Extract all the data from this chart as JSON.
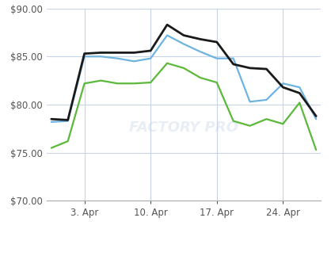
{
  "x_labels": [
    "3. Apr",
    "10. Apr",
    "17. Apr",
    "24. Apr"
  ],
  "brent_crude": [
    78.2,
    78.3,
    85.0,
    85.0,
    84.8,
    84.5,
    84.8,
    87.2,
    86.3,
    85.5,
    84.8,
    84.8,
    80.3,
    80.5,
    82.2,
    81.8,
    78.5
  ],
  "opec_basket": [
    78.5,
    78.4,
    85.3,
    85.4,
    85.4,
    85.4,
    85.6,
    88.3,
    87.2,
    86.8,
    86.5,
    84.2,
    83.8,
    83.7,
    81.8,
    81.2,
    78.8
  ],
  "iran_heavy": [
    75.5,
    76.2,
    82.2,
    82.5,
    82.2,
    82.2,
    82.3,
    84.3,
    83.8,
    82.8,
    82.3,
    78.3,
    77.8,
    78.5,
    78.0,
    80.2,
    75.3
  ],
  "n_points": 17,
  "x_tick_positions": [
    2,
    6,
    10,
    14
  ],
  "ylim": [
    70.0,
    90.0
  ],
  "yticks": [
    70.0,
    75.0,
    80.0,
    85.0,
    90.0
  ],
  "color_brent": "#6eb4e0",
  "color_opec": "#1a1a1a",
  "color_iran": "#5cb83a",
  "background_color": "#ffffff",
  "grid_color": "#c8d4e8",
  "tick_color": "#555555",
  "bottom_spine_color": "#aaaaaa",
  "watermark_text": "FACTORY PRO",
  "watermark_color": "#e8eef5"
}
